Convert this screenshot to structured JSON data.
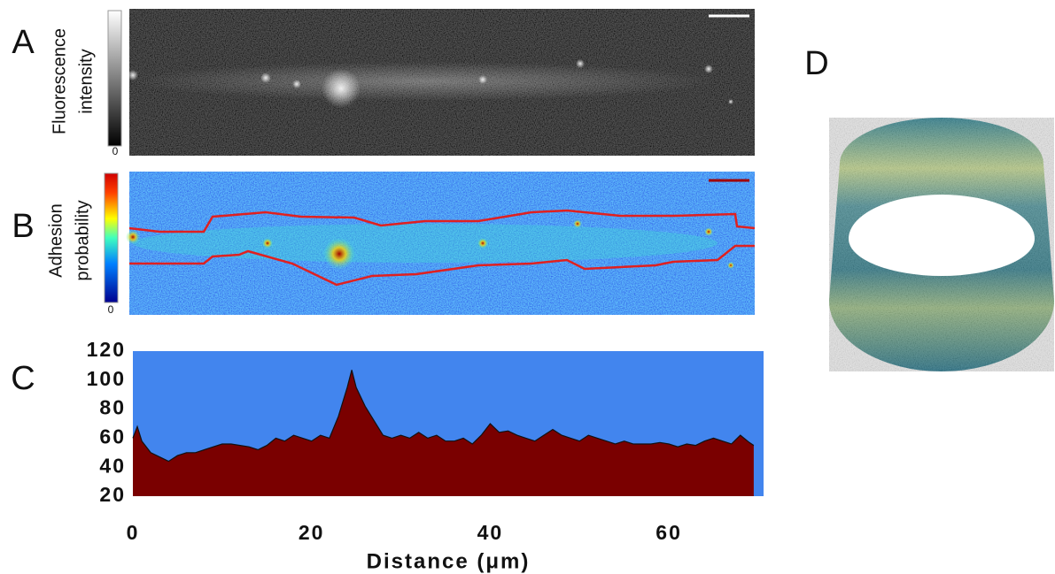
{
  "panels": {
    "a": {
      "label": "A",
      "colorbar_label": [
        "Fluorescence",
        "intensity"
      ],
      "colorbar_min": 0
    },
    "b": {
      "label": "B",
      "colorbar_label": [
        "Adhesion",
        "probability"
      ],
      "colorbar_min": 0
    },
    "d": {
      "label": "D"
    }
  },
  "chart_data": {
    "type": "area",
    "label": "C",
    "x_label": "Distance (μm)",
    "x": [
      0,
      0.5,
      1,
      2,
      3,
      4,
      5,
      6,
      7,
      8,
      9,
      10,
      11,
      12,
      13,
      14,
      15,
      16,
      17,
      18,
      19,
      20,
      21,
      22,
      23,
      24,
      24.5,
      25,
      26,
      27,
      28,
      29,
      30,
      31,
      32,
      33,
      34,
      35,
      36,
      37,
      38,
      39,
      40,
      41,
      42,
      43,
      44,
      45,
      46,
      47,
      48,
      49,
      50,
      51,
      52,
      53,
      54,
      55,
      56,
      57,
      58,
      59,
      60,
      61,
      62,
      63,
      64,
      65,
      66,
      67,
      68,
      69,
      69.5
    ],
    "values": [
      60,
      68,
      58,
      50,
      47,
      44,
      48,
      50,
      50,
      52,
      54,
      56,
      56,
      55,
      54,
      52,
      55,
      60,
      58,
      62,
      60,
      58,
      62,
      60,
      75,
      95,
      107,
      95,
      82,
      72,
      62,
      60,
      62,
      60,
      64,
      60,
      62,
      58,
      58,
      60,
      56,
      62,
      70,
      64,
      65,
      62,
      60,
      58,
      62,
      66,
      62,
      60,
      58,
      62,
      60,
      58,
      56,
      58,
      56,
      56,
      56,
      57,
      56,
      54,
      56,
      55,
      58,
      60,
      58,
      56,
      62,
      57,
      55
    ],
    "xlim": [
      0,
      70.6
    ],
    "ylim": [
      20,
      120
    ],
    "xticks": [
      0,
      20,
      40,
      60
    ],
    "yticks": [
      20,
      40,
      60,
      80,
      100,
      120
    ],
    "color": "#7a0000",
    "line_color": "#111111",
    "background": "#4285ee"
  }
}
